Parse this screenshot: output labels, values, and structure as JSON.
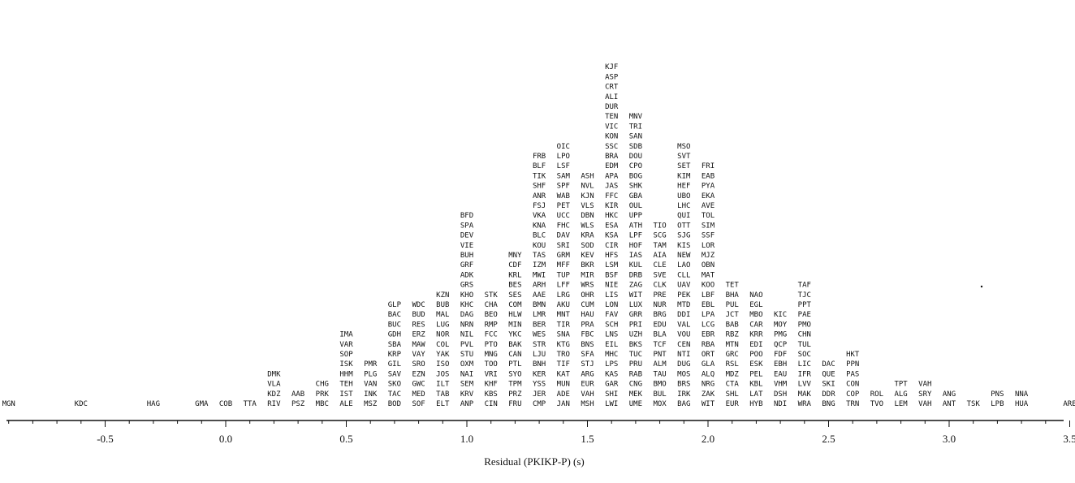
{
  "chart_data": {
    "type": "histogram",
    "xlabel": "Residual (PKIKP-P) (s)",
    "xlim": [
      -1.05,
      3.55
    ],
    "bin_width": 0.1,
    "tick_values": [
      -1.0,
      -0.5,
      0.0,
      0.5,
      1.0,
      1.5,
      2.0,
      2.5,
      3.0,
      3.5
    ],
    "tick_labels": [
      "-1.0",
      "-0.5",
      "0.0",
      "0.5",
      "1.0",
      "1.5",
      "2.0",
      "2.5",
      "3.0",
      "3.5"
    ],
    "bins": [
      {
        "x": -0.9,
        "stations": [
          "MGN"
        ]
      },
      {
        "x": -0.6,
        "stations": [
          "KDC"
        ]
      },
      {
        "x": -0.3,
        "stations": [
          "HAG"
        ]
      },
      {
        "x": -0.1,
        "stations": [
          "GMA"
        ]
      },
      {
        "x": 0.0,
        "stations": [
          "COB"
        ]
      },
      {
        "x": 0.1,
        "stations": [
          "TTA"
        ]
      },
      {
        "x": 0.2,
        "stations": [
          "RIV",
          "KDZ",
          "VLA",
          "DMK"
        ]
      },
      {
        "x": 0.3,
        "stations": [
          "PSZ",
          "AAB"
        ]
      },
      {
        "x": 0.4,
        "stations": [
          "MBC",
          "PRK",
          "CHG"
        ]
      },
      {
        "x": 0.5,
        "stations": [
          "ALE",
          "IST",
          "TEH",
          "HHM",
          "ISK",
          "SOP",
          "VAR",
          "IMA"
        ]
      },
      {
        "x": 0.6,
        "stations": [
          "MSZ",
          "INK",
          "VAN",
          "PLG",
          "PMR"
        ]
      },
      {
        "x": 0.7,
        "stations": [
          "BOD",
          "TAC",
          "SKO",
          "SAV",
          "GIL",
          "KRP",
          "SBA",
          "GDH",
          "BUC",
          "BAC",
          "GLP"
        ]
      },
      {
        "x": 0.8,
        "stations": [
          "SOF",
          "MED",
          "GWC",
          "EZN",
          "SRO",
          "VAY",
          "MAW",
          "ERZ",
          "RES",
          "BUD",
          "WDC"
        ]
      },
      {
        "x": 0.9,
        "stations": [
          "ELT",
          "TAB",
          "ILT",
          "JOS",
          "ISO",
          "YAK",
          "COL",
          "NOR",
          "LUG",
          "MAL",
          "BUB",
          "KZN"
        ]
      },
      {
        "x": 1.0,
        "stations": [
          "ANP",
          "KRV",
          "SEM",
          "NAI",
          "OXM",
          "STU",
          "PVL",
          "NIL",
          "NRN",
          "DAG",
          "KHC",
          "KHO",
          "GRS",
          "ADK",
          "GRF",
          "BUH",
          "VIE",
          "DEV",
          "SPA",
          "BFD"
        ]
      },
      {
        "x": 1.1,
        "stations": [
          "CIN",
          "KBS",
          "KHF",
          "VRI",
          "TOO",
          "MNG",
          "PTO",
          "FCC",
          "RMP",
          "BEO",
          "CHA",
          "STK"
        ]
      },
      {
        "x": 1.2,
        "stations": [
          "FRU",
          "PRZ",
          "TPM",
          "SYO",
          "PTL",
          "CAN",
          "BAK",
          "YKC",
          "MIN",
          "HLW",
          "COM",
          "SES",
          "BES",
          "KRL",
          "CDF",
          "MNY"
        ]
      },
      {
        "x": 1.3,
        "stations": [
          "CMP",
          "JER",
          "YSS",
          "KER",
          "BNH",
          "LJU",
          "STR",
          "WES",
          "BER",
          "LMR",
          "BMN",
          "AAE",
          "ARH",
          "MWI",
          "IZM",
          "TAS",
          "KOU",
          "BLC",
          "KNA",
          "VKA",
          "FSJ",
          "ANR",
          "SHF",
          "TIK",
          "BLF",
          "FRB"
        ]
      },
      {
        "x": 1.4,
        "stations": [
          "JAN",
          "ADE",
          "MUN",
          "KAT",
          "TIF",
          "TRO",
          "KTG",
          "SNA",
          "TIR",
          "MNT",
          "AKU",
          "LRG",
          "LFF",
          "TUP",
          "MFF",
          "GRM",
          "SRI",
          "DAV",
          "FHC",
          "UCC",
          "PET",
          "WAB",
          "SPF",
          "SAM",
          "LSF",
          "LPO",
          "OIC"
        ]
      },
      {
        "x": 1.5,
        "stations": [
          "MSH",
          "VAH",
          "EUR",
          "ARG",
          "STJ",
          "SFA",
          "BNS",
          "FBC",
          "PRA",
          "HAU",
          "CUM",
          "OHR",
          "WRS",
          "MIR",
          "BKR",
          "KEV",
          "SOD",
          "KRA",
          "WLS",
          "DBN",
          "VLS",
          "KJN",
          "NVL",
          "ASH"
        ]
      },
      {
        "x": 1.6,
        "stations": [
          "LWI",
          "SHI",
          "GAR",
          "KAS",
          "LPS",
          "MHC",
          "EIL",
          "LNS",
          "SCH",
          "FAV",
          "LON",
          "LIS",
          "NIE",
          "BSF",
          "LSM",
          "HFS",
          "CIR",
          "KSA",
          "ESA",
          "HKC",
          "KIR",
          "FFC",
          "JAS",
          "APA",
          "EDM",
          "BRA",
          "SSC",
          "KON",
          "VIC",
          "TEN",
          "DUR",
          "ALI",
          "CRT",
          "ASP",
          "KJF"
        ]
      },
      {
        "x": 1.7,
        "stations": [
          "UME",
          "MEK",
          "CNG",
          "RAB",
          "PRU",
          "TUC",
          "BKS",
          "UZH",
          "PRI",
          "GRR",
          "LUX",
          "WIT",
          "ZAG",
          "DRB",
          "KUL",
          "IAS",
          "HOF",
          "LPF",
          "ATH",
          "UPP",
          "OUL",
          "GBA",
          "SHK",
          "BOG",
          "CPO",
          "DOU",
          "SDB",
          "SAN",
          "TRI",
          "MNV"
        ]
      },
      {
        "x": 1.8,
        "stations": [
          "MOX",
          "BUL",
          "BMO",
          "TAU",
          "ALM",
          "PNT",
          "TCF",
          "BLA",
          "EDU",
          "BRG",
          "NUR",
          "PRE",
          "CLK",
          "SVE",
          "CLE",
          "AIA",
          "TAM",
          "SCG",
          "TIO"
        ]
      },
      {
        "x": 1.9,
        "stations": [
          "BAG",
          "IRK",
          "BRS",
          "MOS",
          "DUG",
          "NTI",
          "CEN",
          "VOU",
          "VAL",
          "DDI",
          "MTD",
          "PEK",
          "UAV",
          "CLL",
          "LAO",
          "NEW",
          "KIS",
          "SJG",
          "OTT",
          "QUI",
          "LHC",
          "UBO",
          "HEF",
          "KIM",
          "SET",
          "SVT",
          "MSO"
        ]
      },
      {
        "x": 2.0,
        "stations": [
          "WIT",
          "ZAK",
          "NRG",
          "ALQ",
          "GLA",
          "ORT",
          "RBA",
          "EBR",
          "LCG",
          "LPA",
          "EBL",
          "LBF",
          "KOO",
          "MAT",
          "OBN",
          "MJZ",
          "LOR",
          "SSF",
          "SIM",
          "TOL",
          "AVE",
          "EKA",
          "PYA",
          "EAB",
          "FRI"
        ]
      },
      {
        "x": 2.1,
        "stations": [
          "EUR",
          "SHL",
          "CTA",
          "MDZ",
          "RSL",
          "GRC",
          "MTN",
          "RBZ",
          "BAB",
          "JCT",
          "PUL",
          "BHA",
          "TET"
        ]
      },
      {
        "x": 2.2,
        "stations": [
          "HYB",
          "LAT",
          "KBL",
          "PEL",
          "ESK",
          "POO",
          "EDI",
          "KRR",
          "CAR",
          "MBO",
          "EGL",
          "NAO"
        ]
      },
      {
        "x": 2.3,
        "stations": [
          "NDI",
          "DSH",
          "VHM",
          "EAU",
          "EBH",
          "FDF",
          "QCP",
          "PMG",
          "MOY",
          "KIC"
        ]
      },
      {
        "x": 2.4,
        "stations": [
          "WRA",
          "MAK",
          "LVV",
          "IFR",
          "LIC",
          "SOC",
          "TUL",
          "CHN",
          "PMO",
          "PAE",
          "PPT",
          "TJC",
          "TAF"
        ]
      },
      {
        "x": 2.5,
        "stations": [
          "BNG",
          "DDR",
          "SKI",
          "QUE",
          "DAC"
        ]
      },
      {
        "x": 2.6,
        "stations": [
          "TRN",
          "COP",
          "CON",
          "PAS",
          "PPN",
          "HKT"
        ]
      },
      {
        "x": 2.7,
        "stations": [
          "TVO",
          "ROL"
        ]
      },
      {
        "x": 2.8,
        "stations": [
          "LEM",
          "ALG",
          "TPT"
        ]
      },
      {
        "x": 2.9,
        "stations": [
          "VAH",
          "SRY",
          "VAH"
        ]
      },
      {
        "x": 3.0,
        "stations": [
          "ANT",
          "ANG"
        ]
      },
      {
        "x": 3.1,
        "stations": [
          "TSK"
        ]
      },
      {
        "x": 3.2,
        "stations": [
          "LPB",
          "PNS"
        ]
      },
      {
        "x": 3.3,
        "stations": [
          "HUA",
          "NNA"
        ]
      },
      {
        "x": 3.5,
        "stations": [
          "ARE"
        ]
      }
    ]
  }
}
